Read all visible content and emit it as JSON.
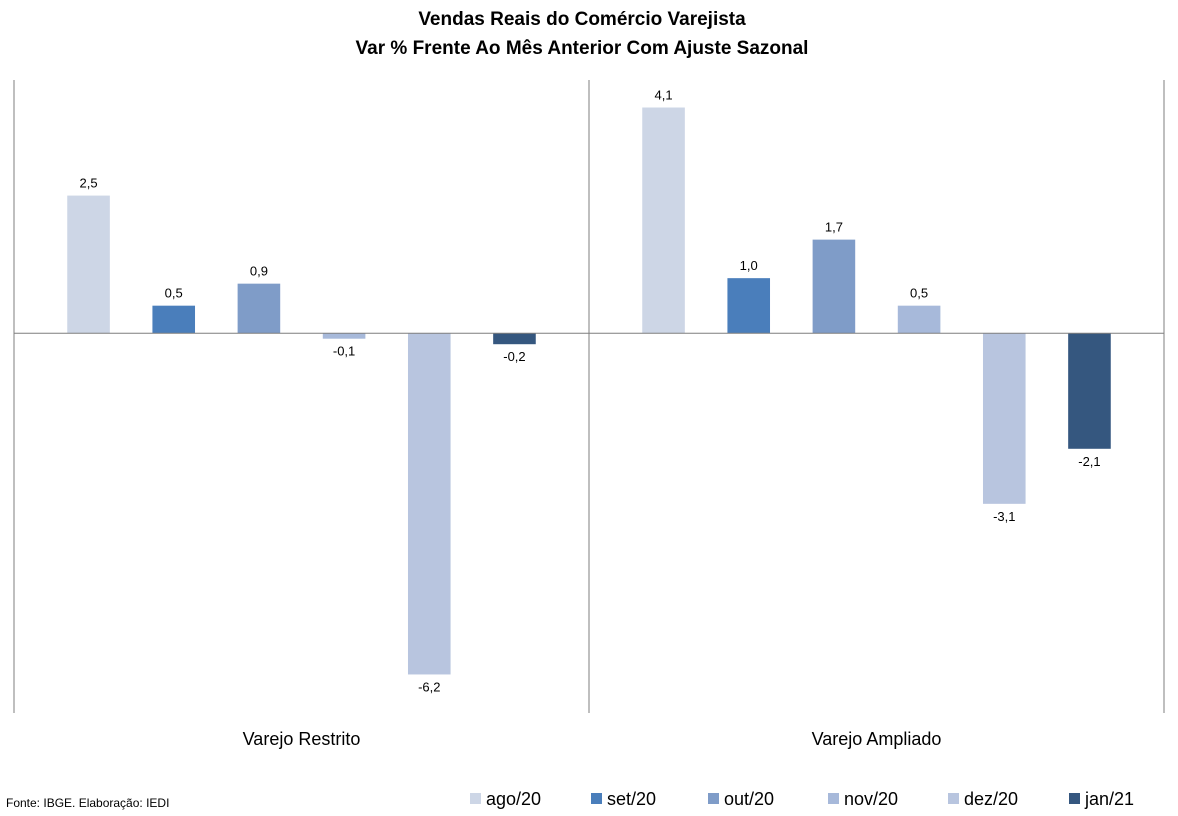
{
  "chart_data": {
    "type": "bar",
    "title": "Vendas Reais do Comércio Varejista",
    "subtitle": "Var % Frente Ao Mês Anterior Com Ajuste Sazonal",
    "categories": [
      "Varejo Restrito",
      "Varejo Ampliado"
    ],
    "series": [
      {
        "name": "ago/20",
        "color": "#cdd6e6",
        "values": [
          2.5,
          4.1
        ],
        "labels": [
          "2,5",
          "4,1"
        ]
      },
      {
        "name": "set/20",
        "color": "#4a7ebb",
        "values": [
          0.5,
          1.0
        ],
        "labels": [
          "0,5",
          "1,0"
        ]
      },
      {
        "name": "out/20",
        "color": "#7f9cc8",
        "values": [
          0.9,
          1.7
        ],
        "labels": [
          "0,9",
          "1,7"
        ]
      },
      {
        "name": "nov/20",
        "color": "#a7b9da",
        "values": [
          -0.1,
          0.5
        ],
        "labels": [
          "-0,1",
          "0,5"
        ]
      },
      {
        "name": "dez/20",
        "color": "#b8c5df",
        "values": [
          -6.2,
          -3.1
        ],
        "labels": [
          "-6,2",
          "-3,1"
        ]
      },
      {
        "name": "jan/21",
        "color": "#35577f",
        "values": [
          -0.2,
          -2.1
        ],
        "labels": [
          "-0,2",
          "-2,1"
        ]
      }
    ],
    "ylim": [
      -6.9,
      4.6
    ],
    "legend_position": "bottom",
    "grid": false
  },
  "source": "Fonte: IBGE. Elaboração: IEDI"
}
